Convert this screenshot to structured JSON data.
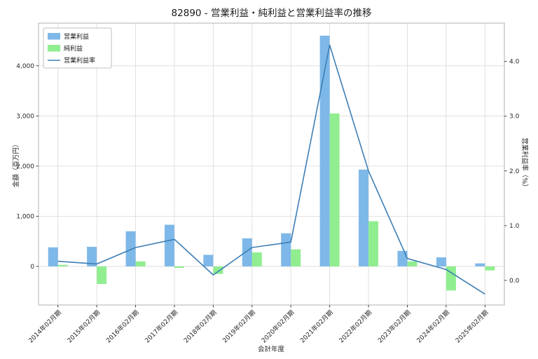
{
  "chart_data": {
    "type": "bar",
    "title": "82890 - 営業利益・純利益と営業利益率の推移",
    "xlabel": "会計年度",
    "ylabel_left": "金額（百万円）",
    "ylabel_right": "営業利益率（%）",
    "categories": [
      "2014年02月期",
      "2015年02月期",
      "2016年02月期",
      "2017年02月期",
      "2018年02月期",
      "2019年02月期",
      "2020年02月期",
      "2021年02月期",
      "2022年02月期",
      "2023年02月期",
      "2024年02月期",
      "2025年02月期"
    ],
    "series": [
      {
        "key": "operating-income",
        "name": "営業利益",
        "kind": "bar",
        "axis": "left",
        "color": "#7eb8e8",
        "values": [
          380,
          390,
          700,
          830,
          230,
          560,
          660,
          4600,
          1930,
          310,
          180,
          60
        ]
      },
      {
        "key": "net-income",
        "name": "純利益",
        "kind": "bar",
        "axis": "left",
        "color": "#90ee90",
        "values": [
          30,
          -350,
          100,
          -30,
          -150,
          280,
          340,
          3050,
          900,
          100,
          -480,
          -80
        ]
      },
      {
        "key": "operating-margin",
        "name": "営業利益率",
        "kind": "line",
        "axis": "right",
        "color": "#3d7eb5",
        "values": [
          0.35,
          0.3,
          0.6,
          0.75,
          0.1,
          0.6,
          0.7,
          4.3,
          2.0,
          0.4,
          0.2,
          -0.25
        ]
      }
    ],
    "yticks_left": [
      0,
      1000,
      2000,
      3000,
      4000
    ],
    "yticks_right": [
      0.0,
      1.0,
      2.0,
      3.0,
      4.0
    ],
    "ylim_left": [
      -770,
      4850
    ],
    "ylim_right": [
      -0.45,
      4.7
    ],
    "grid": true,
    "legend_position": "upper-left",
    "colors": {
      "grid": "#d9d9d9",
      "plot_border": "#b0b0b0",
      "tick": "#333333",
      "tick_label": "#262626",
      "legend_border": "#bfbfbf"
    }
  }
}
